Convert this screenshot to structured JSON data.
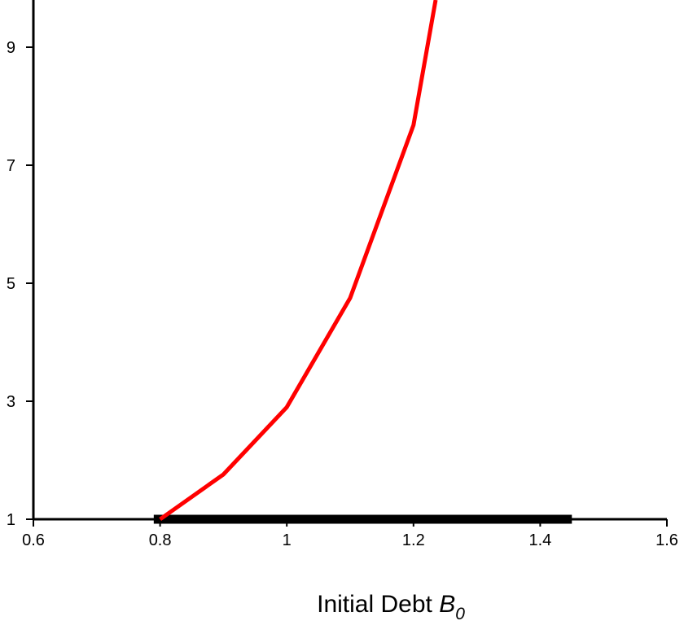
{
  "chart_data": {
    "type": "line",
    "title": "",
    "xlabel": "Initial Debt ",
    "xlabel_var": "B",
    "xlabel_sub": "0",
    "ylabel": "",
    "xlim": [
      0.6,
      1.6
    ],
    "ylim": [
      1,
      9.8
    ],
    "x_ticks": [
      "0.6",
      "0.8",
      "1",
      "1.2",
      "1.4",
      "1.6"
    ],
    "y_ticks": [
      "1",
      "3",
      "5",
      "7",
      "9"
    ],
    "grid": false,
    "legend": "none",
    "colors": {
      "curve": "#ff0000",
      "band": "#000000",
      "axis": "#000000"
    },
    "series": [
      {
        "x": [
          0.8,
          0.9,
          1.0,
          1.1,
          1.2,
          1.235
        ],
        "y": [
          1.0,
          1.76,
          2.9,
          4.75,
          7.68,
          9.8
        ]
      },
      {
        "x": [
          0.79,
          1.45
        ],
        "y": [
          1.0,
          1.0
        ]
      }
    ]
  }
}
